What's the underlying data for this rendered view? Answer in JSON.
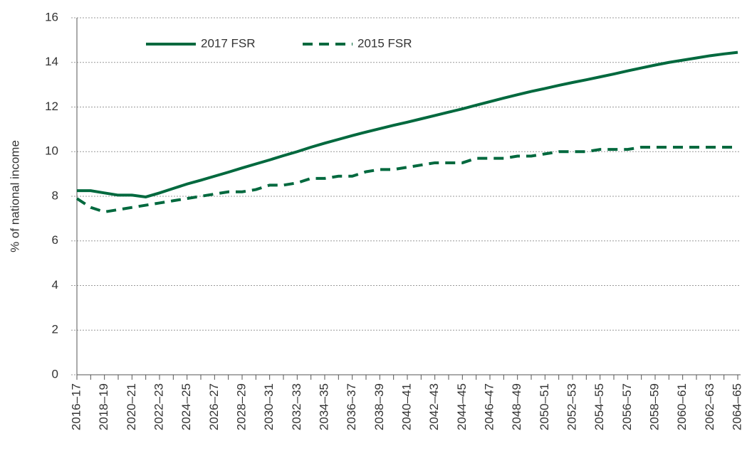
{
  "chart_data": {
    "type": "line",
    "y_label": "% of national income",
    "categories": [
      "2016–17",
      null,
      "2018–19",
      null,
      "2020–21",
      null,
      "2022–23",
      null,
      "2024–25",
      null,
      "2026–27",
      null,
      "2028–29",
      null,
      "2030–31",
      null,
      "2032–33",
      null,
      "2034–35",
      null,
      "2036–37",
      null,
      "2038–39",
      null,
      "2040–41",
      null,
      "2042–43",
      null,
      "2044–45",
      null,
      "2046–47",
      null,
      "2048–49",
      null,
      "2050–51",
      null,
      "2052–53",
      null,
      "2054–55",
      null,
      "2056–57",
      null,
      "2058–59",
      null,
      "2060–61",
      null,
      "2062–63",
      null,
      "2064–65"
    ],
    "series": [
      {
        "name": "2017 FSR",
        "color": "#00693e",
        "dashed": false,
        "values": [
          8.25,
          8.25,
          8.15,
          8.05,
          8.05,
          7.97,
          8.15,
          8.35,
          8.55,
          8.72,
          8.9,
          9.08,
          9.27,
          9.45,
          9.63,
          9.82,
          10.0,
          10.2,
          10.38,
          10.55,
          10.72,
          10.88,
          11.03,
          11.18,
          11.32,
          11.47,
          11.62,
          11.77,
          11.92,
          12.08,
          12.24,
          12.4,
          12.55,
          12.7,
          12.83,
          12.97,
          13.1,
          13.22,
          13.35,
          13.48,
          13.62,
          13.75,
          13.88,
          14.0,
          14.1,
          14.2,
          14.3,
          14.38,
          14.45
        ]
      },
      {
        "name": "2015 FSR",
        "color": "#00693e",
        "dashed": true,
        "values": [
          7.9,
          7.5,
          7.3,
          7.4,
          7.5,
          7.6,
          7.7,
          7.8,
          7.9,
          8.0,
          8.1,
          8.2,
          8.2,
          8.3,
          8.5,
          8.5,
          8.6,
          8.8,
          8.8,
          8.9,
          8.9,
          9.1,
          9.2,
          9.2,
          9.3,
          9.4,
          9.5,
          9.5,
          9.5,
          9.7,
          9.7,
          9.7,
          9.8,
          9.8,
          9.9,
          10.0,
          10.0,
          10.0,
          10.1,
          10.1,
          10.1,
          10.2,
          10.2,
          10.2,
          10.2,
          10.2,
          10.2,
          10.2,
          10.2
        ]
      }
    ],
    "ylim": [
      0,
      16
    ],
    "yticks": [
      0,
      2,
      4,
      6,
      8,
      10,
      12,
      14,
      16
    ],
    "grid": true,
    "legend": "top-left"
  }
}
